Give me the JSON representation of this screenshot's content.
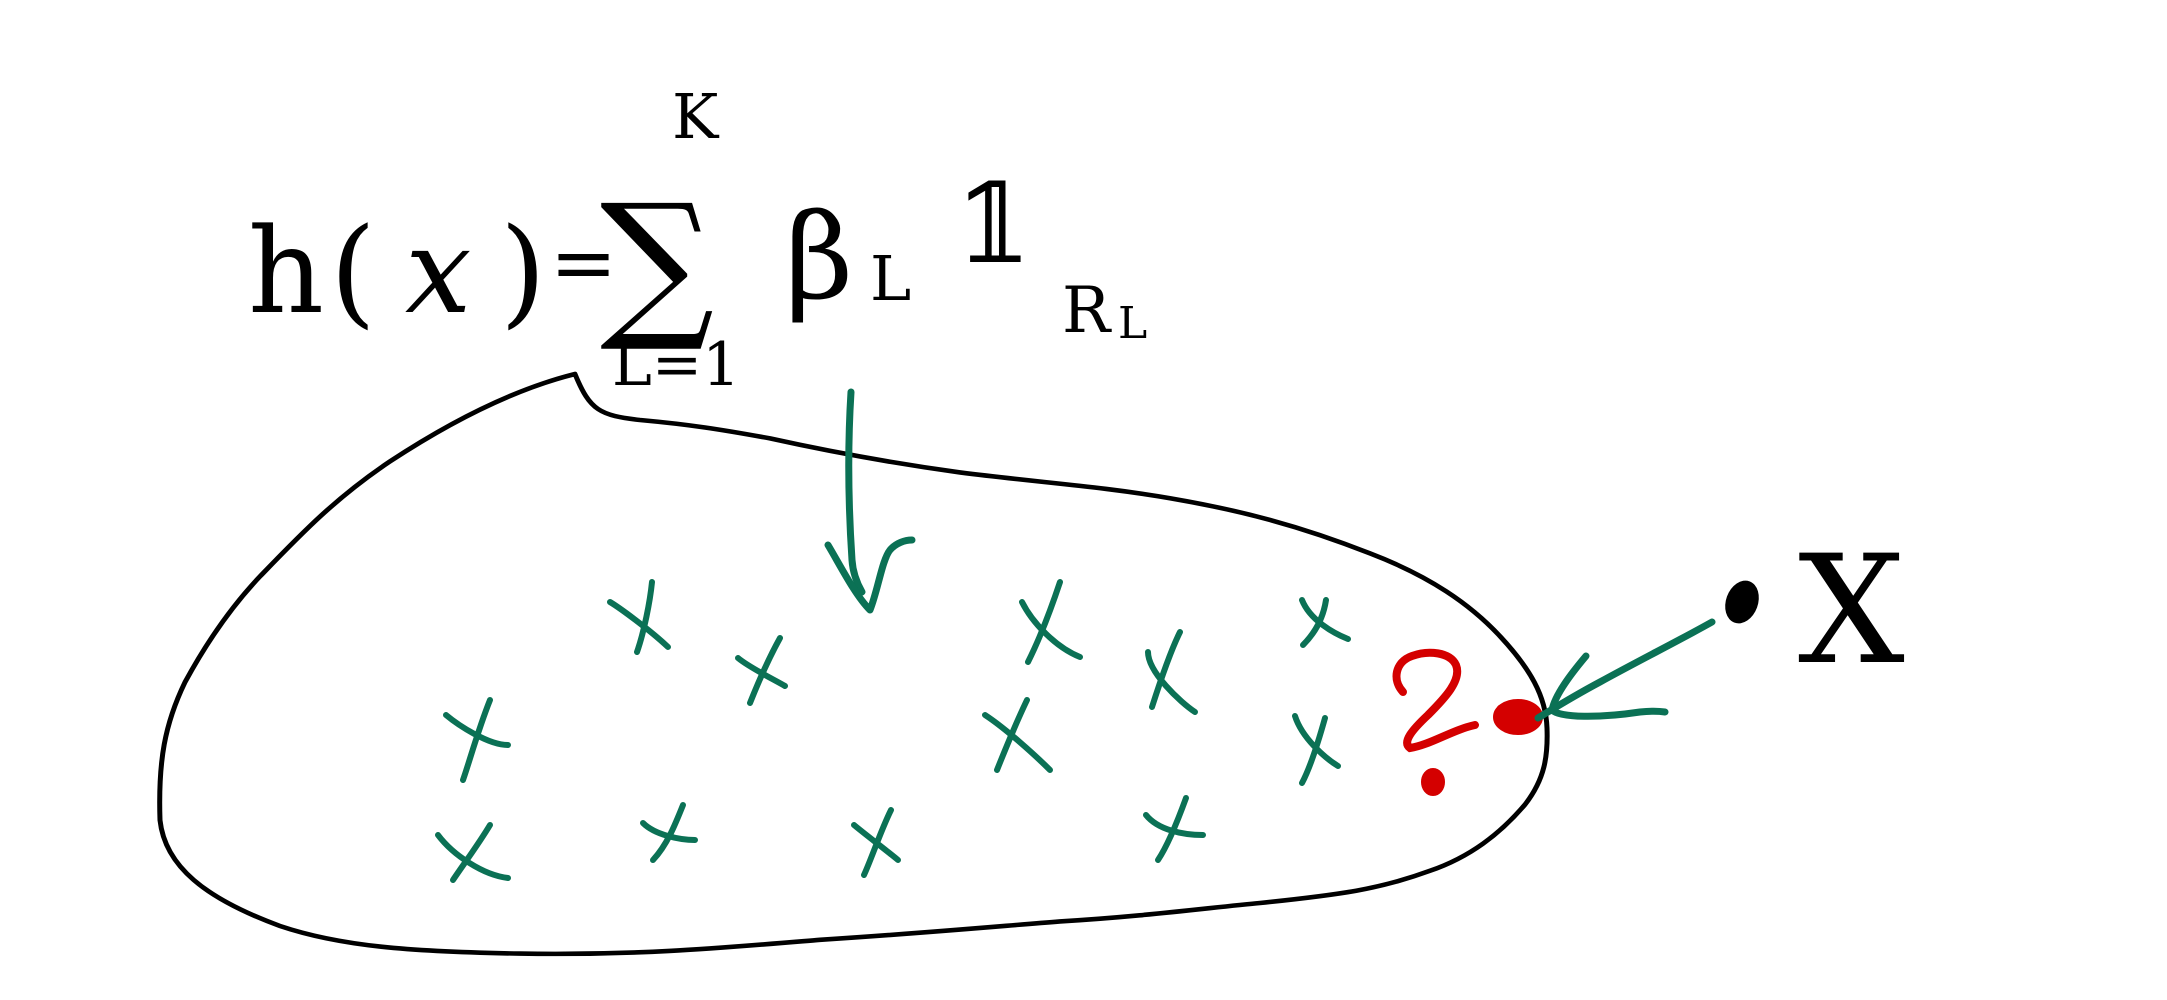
{
  "formula": {
    "lhs_h": "h",
    "lhs_open": "(",
    "lhs_var": "x",
    "lhs_close": ")",
    "equals": "=",
    "sum_symbol": "∑",
    "sum_upper": "K",
    "sum_lower": "L=1",
    "beta": "β",
    "beta_sub": "L",
    "indicator": "𝟙",
    "indicator_sub": "R",
    "indicator_subsub": "L"
  },
  "query": {
    "point_label": "X",
    "question_mark": "?"
  },
  "colors": {
    "ink": "#000000",
    "samples": "#0b7155",
    "highlight": "#d40000",
    "background": "#ffffff"
  }
}
